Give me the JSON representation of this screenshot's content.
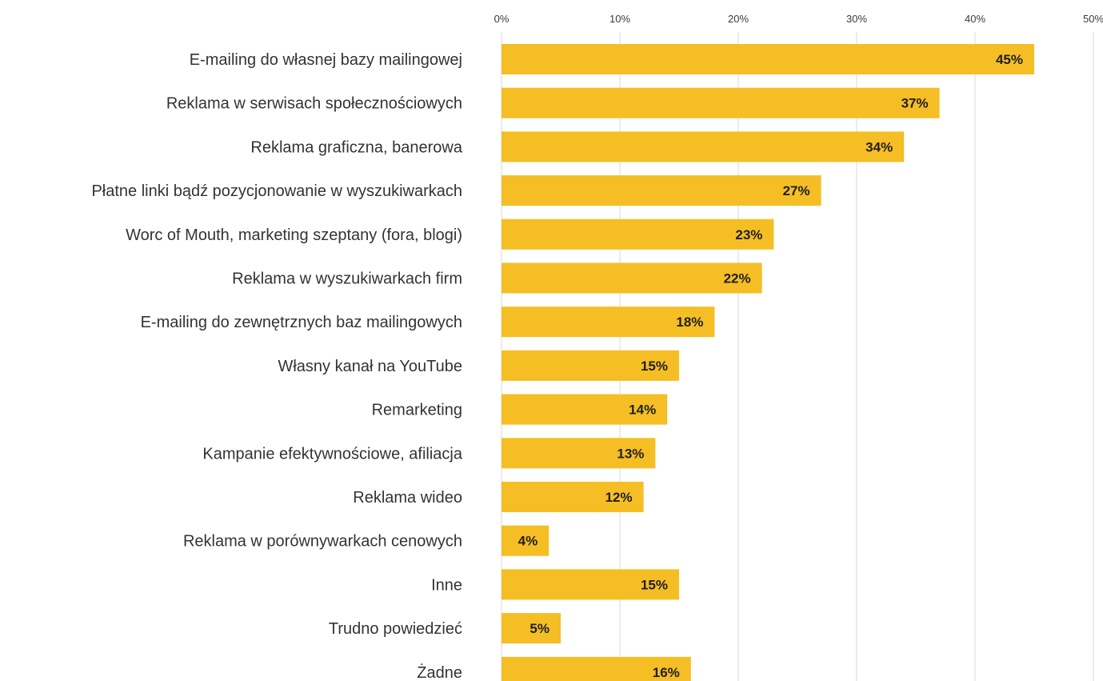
{
  "chart_data": {
    "type": "bar",
    "orientation": "horizontal",
    "title": "",
    "xlabel": "",
    "ylabel": "",
    "xlim": [
      0,
      50
    ],
    "grid": true,
    "legend": "none",
    "bar_color": "#F5BE24",
    "ticks": [
      "0%",
      "10%",
      "20%",
      "30%",
      "40%",
      "50%"
    ],
    "tick_values": [
      0,
      10,
      20,
      30,
      40,
      50
    ],
    "categories": [
      "E-mailing do własnej bazy mailingowej",
      "Reklama w serwisach społecznościowych",
      "Reklama graficzna, banerowa",
      "Płatne linki bądź pozycjonowanie w wyszukiwarkach",
      "Worc of Mouth, marketing szeptany (fora, blogi)",
      "Reklama w wyszukiwarkach firm",
      "E-mailing do zewnętrznych baz mailingowych",
      "Własny kanał na YouTube",
      "Remarketing",
      "Kampanie efektywnościowe, afiliacja",
      "Reklama wideo",
      "Reklama w porównywarkach cenowych",
      "Inne",
      "Trudno powiedzieć",
      "Żadne"
    ],
    "values": [
      45,
      37,
      34,
      27,
      23,
      22,
      18,
      15,
      14,
      13,
      12,
      4,
      15,
      5,
      16
    ],
    "value_labels": [
      "45%",
      "37%",
      "34%",
      "27%",
      "23%",
      "22%",
      "18%",
      "15%",
      "14%",
      "13%",
      "12%",
      "4%",
      "15%",
      "5%",
      "16%"
    ]
  }
}
